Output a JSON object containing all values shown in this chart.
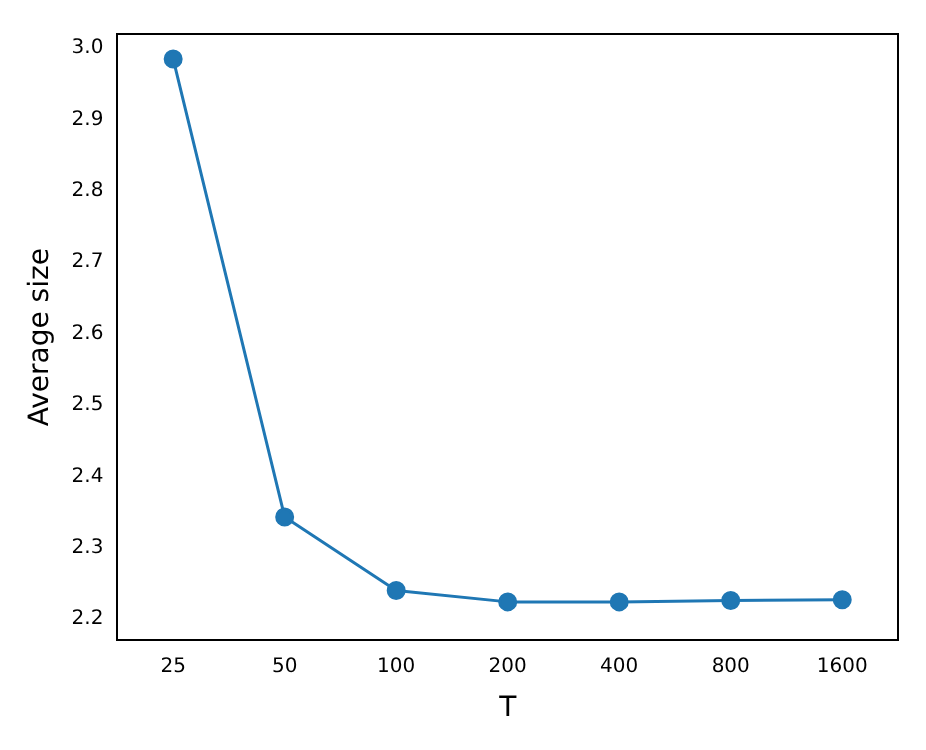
{
  "chart_data": {
    "type": "line",
    "xlabel": "T",
    "ylabel": "Average size",
    "categories": [
      "25",
      "50",
      "100",
      "200",
      "400",
      "800",
      "1600"
    ],
    "series": [
      {
        "color": "#1f77b4",
        "values": [
          2.985,
          2.343,
          2.24,
          2.224,
          2.224,
          2.226,
          2.227
        ]
      }
    ],
    "ylim": [
      2.17,
      3.02
    ],
    "yticks": [
      2.2,
      2.3,
      2.4,
      2.5,
      2.6,
      2.7,
      2.8,
      2.9,
      {
        "value": 3,
        "label": "3.0"
      }
    ],
    "grid": false,
    "legend": false,
    "marker": "circle",
    "line_style": "solid"
  }
}
